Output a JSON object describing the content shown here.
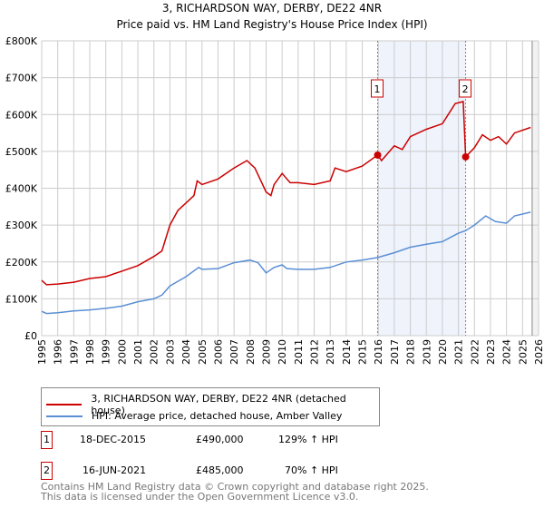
{
  "chart_data": {
    "type": "line",
    "title": "3, RICHARDSON WAY, DERBY, DE22 4NR",
    "subtitle": "Price paid vs. HM Land Registry's House Price Index (HPI)",
    "xlim": [
      1995,
      2026
    ],
    "ylim": [
      0,
      800000
    ],
    "x_ticks": [
      "1995",
      "1996",
      "1997",
      "1998",
      "1999",
      "2000",
      "2001",
      "2002",
      "2003",
      "2004",
      "2005",
      "2006",
      "2007",
      "2008",
      "2009",
      "2010",
      "2011",
      "2012",
      "2013",
      "2014",
      "2015",
      "2016",
      "2017",
      "2018",
      "2019",
      "2020",
      "2021",
      "2022",
      "2023",
      "2024",
      "2025",
      "2026"
    ],
    "y_ticks": [
      {
        "v": 0,
        "label": "£0"
      },
      {
        "v": 100000,
        "label": "£100K"
      },
      {
        "v": 200000,
        "label": "£200K"
      },
      {
        "v": 300000,
        "label": "£300K"
      },
      {
        "v": 400000,
        "label": "£400K"
      },
      {
        "v": 500000,
        "label": "£500K"
      },
      {
        "v": 600000,
        "label": "£600K"
      },
      {
        "v": 700000,
        "label": "£700K"
      },
      {
        "v": 800000,
        "label": "£800K"
      }
    ],
    "grid": true,
    "shaded_range": [
      2015.96,
      2021.45
    ],
    "forecast_hatch_from": 2025.6,
    "series": [
      {
        "name": "3, RICHARDSON WAY, DERBY, DE22 4NR (detached house)",
        "color": "#cc0000",
        "x": [
          1995,
          1995.3,
          1996,
          1997,
          1998,
          1999,
          2000,
          2001,
          2002,
          2002.5,
          2003,
          2003.5,
          2004,
          2004.5,
          2004.7,
          2005,
          2006,
          2006.5,
          2007,
          2007.8,
          2008.3,
          2009,
          2009.3,
          2009.5,
          2010,
          2010.2,
          2010.5,
          2011,
          2012,
          2013,
          2013.3,
          2014,
          2015,
          2015.96,
          2016.2,
          2017,
          2017.5,
          2018,
          2019,
          2020,
          2020.8,
          2021.3,
          2021.45,
          2022,
          2022.5,
          2023,
          2023.5,
          2024,
          2024.5,
          2025.5
        ],
        "y": [
          150000,
          138000,
          140000,
          145000,
          155000,
          160000,
          175000,
          190000,
          215000,
          230000,
          300000,
          340000,
          360000,
          380000,
          420000,
          410000,
          425000,
          440000,
          455000,
          475000,
          455000,
          390000,
          380000,
          410000,
          440000,
          430000,
          415000,
          415000,
          410000,
          420000,
          455000,
          445000,
          460000,
          490000,
          475000,
          515000,
          505000,
          540000,
          560000,
          575000,
          630000,
          635000,
          485000,
          510000,
          545000,
          530000,
          540000,
          520000,
          550000,
          565000
        ]
      },
      {
        "name": "HPI: Average price, detached house, Amber Valley",
        "color": "#5b8fd4",
        "x": [
          1995,
          1995.3,
          1996,
          1997,
          1998,
          1999,
          2000,
          2001,
          2002,
          2002.5,
          2003,
          2004,
          2004.8,
          2005,
          2006,
          2007,
          2008,
          2008.5,
          2009,
          2009.5,
          2010,
          2010.3,
          2011,
          2012,
          2013,
          2014,
          2015,
          2015.96,
          2017,
          2018,
          2019,
          2020,
          2021,
          2021.45,
          2022,
          2022.7,
          2023.3,
          2024,
          2024.5,
          2025.5
        ],
        "y": [
          66000,
          60000,
          62000,
          67000,
          70000,
          74000,
          80000,
          92000,
          100000,
          110000,
          135000,
          160000,
          185000,
          180000,
          182000,
          198000,
          205000,
          198000,
          170000,
          185000,
          192000,
          182000,
          180000,
          180000,
          185000,
          200000,
          205000,
          212000,
          225000,
          240000,
          248000,
          255000,
          278000,
          285000,
          300000,
          325000,
          310000,
          305000,
          325000,
          335000
        ]
      }
    ],
    "markers": [
      {
        "label": "1",
        "x": 2015.96,
        "y": 490000
      },
      {
        "label": "2",
        "x": 2021.45,
        "y": 485000
      }
    ]
  },
  "legend": {
    "series1": "3, RICHARDSON WAY, DERBY, DE22 4NR (detached house)",
    "series2": "HPI: Average price, detached house, Amber Valley"
  },
  "sales": [
    {
      "num": "1",
      "date": "18-DEC-2015",
      "price": "£490,000",
      "hpi": "129% ↑ HPI"
    },
    {
      "num": "2",
      "date": "16-JUN-2021",
      "price": "£485,000",
      "hpi": "70% ↑ HPI"
    }
  ],
  "footer": {
    "line1": "Contains HM Land Registry data © Crown copyright and database right 2025.",
    "line2": "This data is licensed under the Open Government Licence v3.0."
  }
}
